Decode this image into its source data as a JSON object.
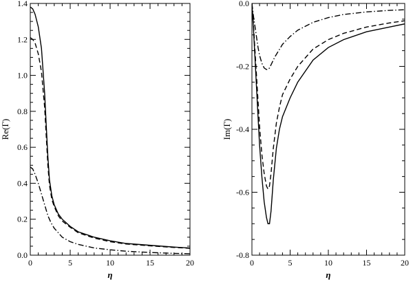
{
  "chart_data": [
    {
      "type": "line",
      "xlabel": "η",
      "ylabel": "Re(Γ)",
      "xlim": [
        0,
        20
      ],
      "ylim": [
        0.0,
        1.4
      ],
      "xticks": [
        0,
        5,
        10,
        15,
        20
      ],
      "yticks": [
        0.0,
        0.2,
        0.4,
        0.6,
        0.8,
        1.0,
        1.2,
        1.4
      ],
      "xtick_labels": [
        "0",
        "5",
        "10",
        "15",
        "20"
      ],
      "ytick_labels": [
        "0.0",
        "0.2",
        "0.4",
        "0.6",
        "0.8",
        "1.0",
        "1.2",
        "1.4"
      ],
      "grid": false,
      "series": [
        {
          "style": "solid",
          "x": [
            0,
            0.3,
            0.6,
            1.0,
            1.4,
            1.8,
            2.0,
            2.2,
            2.4,
            2.7,
            3.0,
            3.5,
            4.0,
            5.0,
            6.0,
            8.0,
            10.0,
            12.0,
            15.0,
            18.0,
            20.0
          ],
          "y": [
            1.38,
            1.37,
            1.34,
            1.27,
            1.15,
            0.9,
            0.72,
            0.55,
            0.42,
            0.33,
            0.28,
            0.23,
            0.2,
            0.16,
            0.13,
            0.1,
            0.08,
            0.065,
            0.055,
            0.045,
            0.04
          ]
        },
        {
          "style": "dashed",
          "x": [
            0,
            0.3,
            0.6,
            1.0,
            1.4,
            1.8,
            2.0,
            2.2,
            2.4,
            2.7,
            3.0,
            3.5,
            4.0,
            5.0,
            6.0,
            8.0,
            10.0,
            12.0,
            15.0,
            18.0,
            20.0
          ],
          "y": [
            1.21,
            1.2,
            1.18,
            1.12,
            1.02,
            0.82,
            0.66,
            0.5,
            0.39,
            0.31,
            0.27,
            0.22,
            0.19,
            0.155,
            0.125,
            0.095,
            0.075,
            0.062,
            0.052,
            0.043,
            0.038
          ]
        },
        {
          "style": "dashdot",
          "x": [
            0,
            0.3,
            0.6,
            1.0,
            1.4,
            1.8,
            2.2,
            2.6,
            3.0,
            4.0,
            5.0,
            6.0,
            8.0,
            10.0,
            12.0,
            15.0,
            18.0,
            20.0
          ],
          "y": [
            0.49,
            0.48,
            0.45,
            0.4,
            0.34,
            0.28,
            0.22,
            0.18,
            0.15,
            0.1,
            0.075,
            0.06,
            0.04,
            0.03,
            0.022,
            0.015,
            0.01,
            0.008
          ]
        }
      ]
    },
    {
      "type": "line",
      "xlabel": "η",
      "ylabel": "Im(Γ)",
      "xlim": [
        0,
        20
      ],
      "ylim": [
        -0.8,
        0.0
      ],
      "xticks": [
        0,
        5,
        10,
        15,
        20
      ],
      "yticks": [
        -0.8,
        -0.6,
        -0.4,
        -0.2,
        0.0
      ],
      "xtick_labels": [
        "0",
        "5",
        "10",
        "15",
        "20"
      ],
      "ytick_labels": [
        "-0.8",
        "-0.6",
        "-0.4",
        "-0.2",
        "0.0"
      ],
      "grid": false,
      "series": [
        {
          "style": "solid",
          "x": [
            0,
            0.2,
            0.5,
            0.8,
            1.0,
            1.3,
            1.6,
            1.9,
            2.1,
            2.3,
            2.5,
            2.8,
            3.2,
            3.6,
            4.0,
            5.0,
            6.0,
            8.0,
            10.0,
            12.0,
            15.0,
            18.0,
            20.0
          ],
          "y": [
            0.0,
            -0.08,
            -0.22,
            -0.36,
            -0.45,
            -0.55,
            -0.63,
            -0.68,
            -0.7,
            -0.7,
            -0.66,
            -0.56,
            -0.46,
            -0.4,
            -0.36,
            -0.3,
            -0.25,
            -0.18,
            -0.14,
            -0.115,
            -0.09,
            -0.075,
            -0.065
          ]
        },
        {
          "style": "dashed",
          "x": [
            0,
            0.2,
            0.5,
            0.8,
            1.0,
            1.3,
            1.6,
            1.9,
            2.1,
            2.3,
            2.5,
            2.8,
            3.2,
            3.6,
            4.0,
            5.0,
            6.0,
            8.0,
            10.0,
            12.0,
            15.0,
            18.0,
            20.0
          ],
          "y": [
            0.0,
            -0.07,
            -0.19,
            -0.31,
            -0.39,
            -0.48,
            -0.54,
            -0.58,
            -0.59,
            -0.58,
            -0.54,
            -0.46,
            -0.38,
            -0.33,
            -0.29,
            -0.24,
            -0.2,
            -0.145,
            -0.115,
            -0.095,
            -0.075,
            -0.062,
            -0.055
          ]
        },
        {
          "style": "dashdot",
          "x": [
            0,
            0.2,
            0.5,
            0.8,
            1.0,
            1.3,
            1.6,
            1.9,
            2.1,
            2.3,
            2.6,
            3.0,
            3.5,
            4.0,
            5.0,
            6.0,
            8.0,
            10.0,
            12.0,
            15.0,
            18.0,
            20.0
          ],
          "y": [
            0.0,
            -0.04,
            -0.09,
            -0.14,
            -0.165,
            -0.19,
            -0.205,
            -0.21,
            -0.21,
            -0.205,
            -0.19,
            -0.17,
            -0.15,
            -0.13,
            -0.105,
            -0.085,
            -0.06,
            -0.045,
            -0.035,
            -0.027,
            -0.022,
            -0.02
          ]
        }
      ]
    }
  ]
}
